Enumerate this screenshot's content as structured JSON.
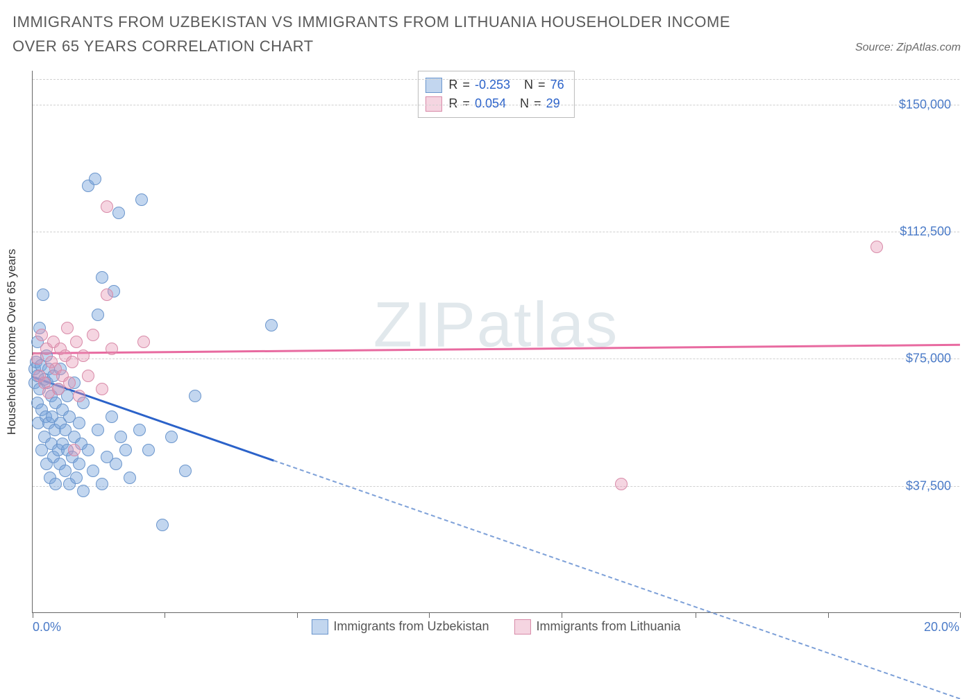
{
  "title": "IMMIGRANTS FROM UZBEKISTAN VS IMMIGRANTS FROM LITHUANIA HOUSEHOLDER INCOME OVER 65 YEARS CORRELATION CHART",
  "source": "Source: ZipAtlas.com",
  "watermark_a": "ZIP",
  "watermark_b": "atlas",
  "chart": {
    "type": "scatter",
    "background_color": "#ffffff",
    "grid_color": "#d0d0d0",
    "axis_color": "#666666",
    "text_color": "#4a7ac7",
    "font_size": 18,
    "xlim": [
      0,
      20
    ],
    "ylim": [
      0,
      160000
    ],
    "xticks": [
      0,
      2.85,
      5.7,
      8.55,
      11.4,
      14.3,
      17.15,
      20
    ],
    "xtick_labels": {
      "0": "0.0%",
      "20": "20.0%"
    },
    "yticks": [
      37500,
      75000,
      112500,
      150000
    ],
    "ytick_labels": [
      "$37,500",
      "$75,000",
      "$112,500",
      "$150,000"
    ],
    "ylabel": "Householder Income Over 65 years",
    "marker_radius": 8,
    "series": [
      {
        "key": "uzbekistan",
        "label": "Immigrants from Uzbekistan",
        "fill": "rgba(120,165,220,0.45)",
        "stroke": "#6a95cc",
        "R": "-0.253",
        "N": "76",
        "trend": {
          "x0": 0,
          "y0": 70000,
          "x1": 20,
          "y1": -25000,
          "solid_until_x": 5.2,
          "solid_color": "#2b62c9",
          "dash_color": "#7da0d8",
          "line_width": 3
        },
        "points": [
          [
            0.05,
            72000
          ],
          [
            0.05,
            68000
          ],
          [
            0.08,
            74000
          ],
          [
            0.1,
            70000
          ],
          [
            0.1,
            62000
          ],
          [
            0.1,
            80000
          ],
          [
            0.12,
            56000
          ],
          [
            0.15,
            66000
          ],
          [
            0.15,
            84000
          ],
          [
            0.18,
            73000
          ],
          [
            0.2,
            60000
          ],
          [
            0.2,
            48000
          ],
          [
            0.22,
            94000
          ],
          [
            0.25,
            69000
          ],
          [
            0.25,
            52000
          ],
          [
            0.28,
            58000
          ],
          [
            0.3,
            76000
          ],
          [
            0.3,
            44000
          ],
          [
            0.32,
            68000
          ],
          [
            0.35,
            56000
          ],
          [
            0.35,
            72000
          ],
          [
            0.38,
            40000
          ],
          [
            0.4,
            64000
          ],
          [
            0.4,
            50000
          ],
          [
            0.42,
            58000
          ],
          [
            0.45,
            46000
          ],
          [
            0.45,
            70000
          ],
          [
            0.48,
            54000
          ],
          [
            0.5,
            62000
          ],
          [
            0.5,
            38000
          ],
          [
            0.55,
            48000
          ],
          [
            0.55,
            66000
          ],
          [
            0.58,
            44000
          ],
          [
            0.6,
            56000
          ],
          [
            0.6,
            72000
          ],
          [
            0.65,
            50000
          ],
          [
            0.65,
            60000
          ],
          [
            0.7,
            42000
          ],
          [
            0.7,
            54000
          ],
          [
            0.75,
            48000
          ],
          [
            0.75,
            64000
          ],
          [
            0.8,
            38000
          ],
          [
            0.8,
            58000
          ],
          [
            0.85,
            46000
          ],
          [
            0.9,
            52000
          ],
          [
            0.9,
            68000
          ],
          [
            0.95,
            40000
          ],
          [
            1.0,
            56000
          ],
          [
            1.0,
            44000
          ],
          [
            1.05,
            50000
          ],
          [
            1.1,
            62000
          ],
          [
            1.1,
            36000
          ],
          [
            1.2,
            48000
          ],
          [
            1.2,
            126000
          ],
          [
            1.3,
            42000
          ],
          [
            1.35,
            128000
          ],
          [
            1.4,
            54000
          ],
          [
            1.4,
            88000
          ],
          [
            1.5,
            38000
          ],
          [
            1.5,
            99000
          ],
          [
            1.6,
            46000
          ],
          [
            1.7,
            58000
          ],
          [
            1.75,
            95000
          ],
          [
            1.8,
            44000
          ],
          [
            1.85,
            118000
          ],
          [
            1.9,
            52000
          ],
          [
            2.0,
            48000
          ],
          [
            2.1,
            40000
          ],
          [
            2.3,
            54000
          ],
          [
            2.35,
            122000
          ],
          [
            2.5,
            48000
          ],
          [
            2.8,
            26000
          ],
          [
            3.0,
            52000
          ],
          [
            3.3,
            42000
          ],
          [
            3.5,
            64000
          ],
          [
            5.15,
            85000
          ]
        ]
      },
      {
        "key": "lithuania",
        "label": "Immigrants from Lithuania",
        "fill": "rgba(230,150,180,0.40)",
        "stroke": "#d88aa8",
        "R": "0.054",
        "N": "29",
        "trend": {
          "x0": 0,
          "y0": 77000,
          "x1": 20,
          "y1": 79500,
          "solid_until_x": 20,
          "solid_color": "#e86aa0",
          "line_width": 3
        },
        "points": [
          [
            0.1,
            75000
          ],
          [
            0.15,
            70000
          ],
          [
            0.2,
            82000
          ],
          [
            0.25,
            68000
          ],
          [
            0.3,
            78000
          ],
          [
            0.35,
            65000
          ],
          [
            0.4,
            74000
          ],
          [
            0.45,
            80000
          ],
          [
            0.5,
            72000
          ],
          [
            0.55,
            66000
          ],
          [
            0.6,
            78000
          ],
          [
            0.65,
            70000
          ],
          [
            0.7,
            76000
          ],
          [
            0.75,
            84000
          ],
          [
            0.8,
            68000
          ],
          [
            0.85,
            74000
          ],
          [
            0.9,
            48000
          ],
          [
            0.95,
            80000
          ],
          [
            1.0,
            64000
          ],
          [
            1.1,
            76000
          ],
          [
            1.2,
            70000
          ],
          [
            1.3,
            82000
          ],
          [
            1.5,
            66000
          ],
          [
            1.6,
            94000
          ],
          [
            1.6,
            120000
          ],
          [
            1.7,
            78000
          ],
          [
            2.4,
            80000
          ],
          [
            12.7,
            38000
          ],
          [
            18.2,
            108000
          ]
        ]
      }
    ],
    "legend_labels": {
      "R": "R",
      "N": "N",
      "eq": "="
    }
  }
}
